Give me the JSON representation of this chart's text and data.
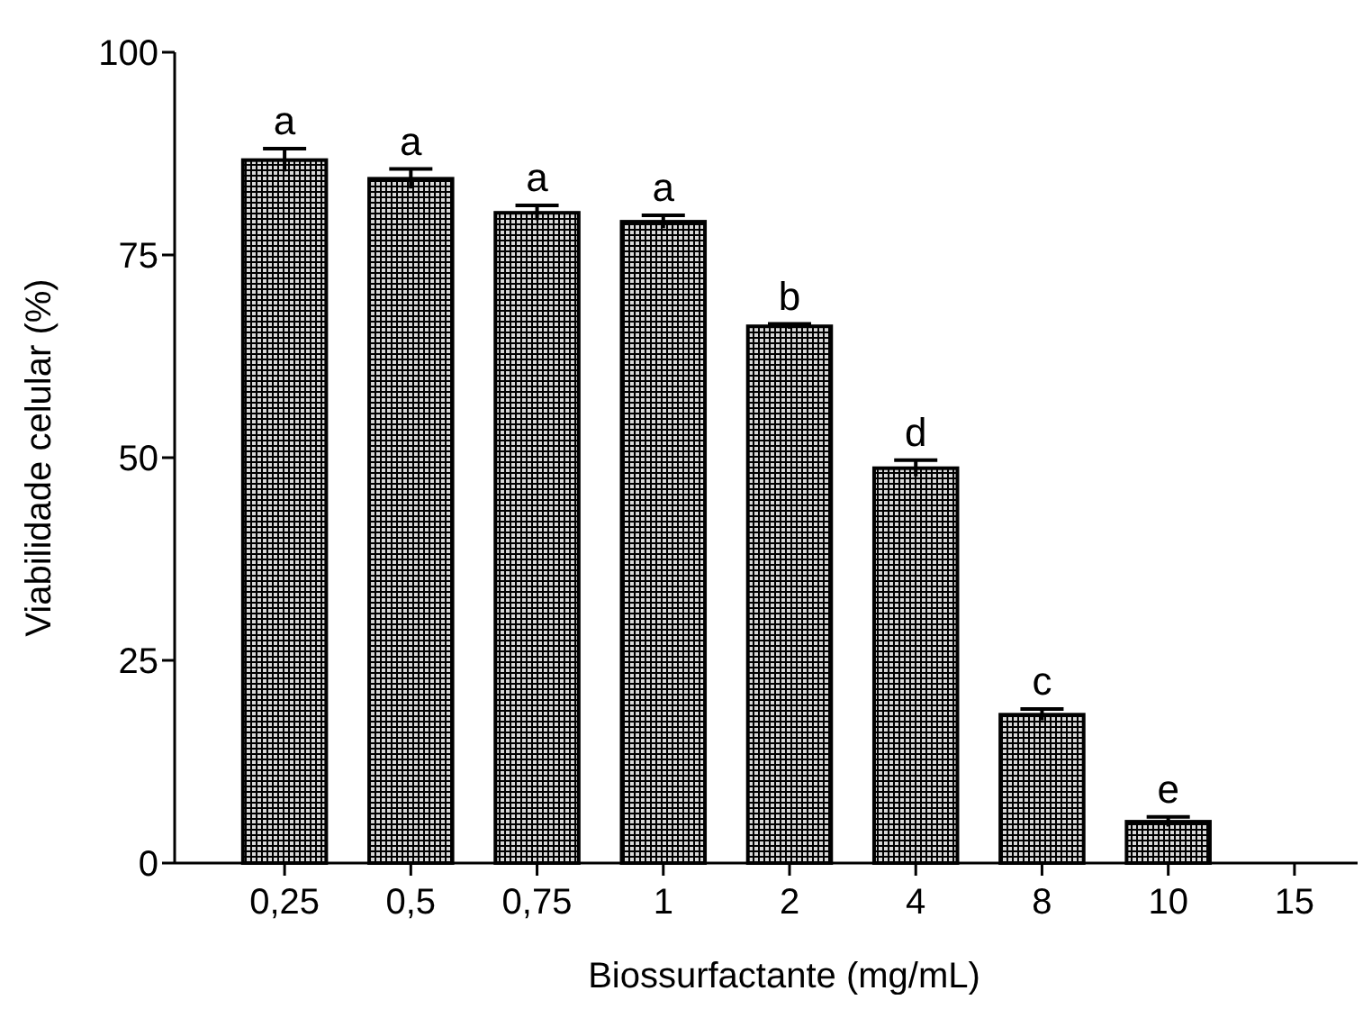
{
  "chart_data": {
    "type": "bar",
    "xlabel": "Biossurfactante (mg/mL)",
    "ylabel": "Viabilidade celular (%)",
    "categories": [
      "0,25",
      "0,5",
      "0,75",
      "1",
      "2",
      "4",
      "8",
      "10",
      "15"
    ],
    "values": [
      86.7,
      84.4,
      80.2,
      79.1,
      66.2,
      48.7,
      18.3,
      5.1,
      0
    ],
    "errors": [
      1.4,
      1.2,
      0.9,
      0.8,
      0.3,
      1,
      0.7,
      0.6,
      null
    ],
    "color": "#000000",
    "ylim": [
      0,
      100
    ],
    "yticks": [
      0,
      25,
      50,
      75,
      100
    ],
    "grid": false,
    "annotations": [
      {
        "text": "a",
        "x": "0,25",
        "y": 88.1
      },
      {
        "text": "a",
        "x": "0,5",
        "y": 85.6
      },
      {
        "text": "a",
        "x": "0,75",
        "y": 81.1
      },
      {
        "text": "a",
        "x": "1",
        "y": 79.9
      },
      {
        "text": "b",
        "x": "2",
        "y": 66.5
      },
      {
        "text": "d",
        "x": "4",
        "y": 49.7
      },
      {
        "text": "c",
        "x": "8",
        "y": 19
      },
      {
        "text": "e",
        "x": "10",
        "y": 5.7
      }
    ]
  }
}
